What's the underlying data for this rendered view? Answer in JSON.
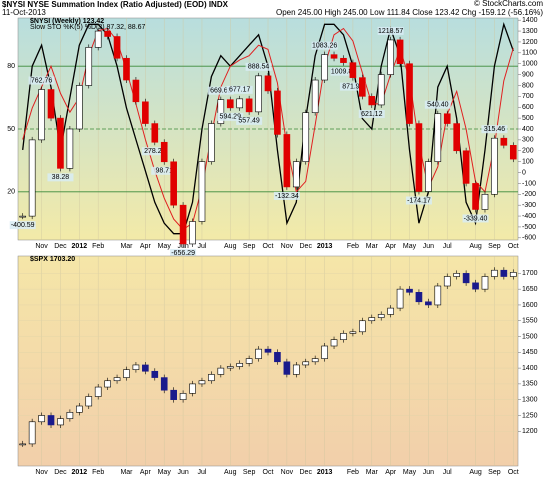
{
  "header": {
    "title": "$NYSI NYSE Summation Index (Ratio Adjusted) (EOD) INDX",
    "date": "11-Oct-2013",
    "quote": "Open 245.00  High 245.00  Low 111.84  Close 123.42  Chg -159.12 (-56.16%)",
    "copyright": "© StockCharts.com"
  },
  "chart_data": [
    {
      "type": "candlestick",
      "legend": "$NYSI (Weekly) 123.42",
      "categories": [
        null,
        null,
        "Nov",
        null,
        "Dec",
        null,
        "2012",
        null,
        "Feb",
        null,
        null,
        "Mar",
        null,
        "Apr",
        null,
        "May",
        null,
        "Jun",
        null,
        "Jul",
        null,
        null,
        "Aug",
        null,
        "Sep",
        null,
        "Oct",
        null,
        "Nov",
        null,
        "Dec",
        null,
        "2013",
        null,
        null,
        "Feb",
        null,
        "Mar",
        null,
        "Apr",
        null,
        "May",
        null,
        "Jun",
        null,
        "Jul",
        null,
        null,
        "Aug",
        null,
        "Sep",
        null,
        "Oct"
      ],
      "values": [
        -400.59,
        300,
        762.76,
        500,
        38.28,
        400,
        800,
        1150,
        1300,
        1250,
        1050,
        850,
        650,
        450,
        278.2,
        98.71,
        -300,
        -656.29,
        -450,
        100,
        450,
        669.62,
        594.29,
        677.17,
        557.49,
        888.54,
        750,
        350,
        -132.34,
        100,
        550,
        850,
        1083.26,
        1050,
        1009.82,
        871.99,
        700,
        621.12,
        900,
        1218.57,
        1000,
        450,
        -174.17,
        100,
        540.4,
        450,
        200,
        -100,
        -339.4,
        -200,
        315.46,
        250,
        123.42
      ],
      "value_labels": [
        "-400.59",
        null,
        "762.76",
        null,
        "38.28",
        null,
        null,
        null,
        null,
        null,
        null,
        null,
        null,
        null,
        "278.20",
        "98.71",
        null,
        "-656.29",
        null,
        null,
        null,
        "669.62",
        "594.29",
        "677.17",
        "557.49",
        "888.54",
        null,
        null,
        "-132.34",
        null,
        null,
        null,
        "1083.26",
        null,
        "1009.82",
        "871.99",
        null,
        "621.12",
        null,
        "1218.57",
        null,
        null,
        "-174.17",
        null,
        "540.40",
        null,
        null,
        null,
        "-339.40",
        null,
        "315.46",
        null,
        null
      ],
      "up_color": "#ffffff",
      "down_color": "#e00000",
      "ylim": [
        -620,
        1420
      ],
      "yticks": [
        -600,
        -500,
        -400,
        -300,
        -200,
        -100,
        0,
        100,
        200,
        300,
        400,
        500,
        600,
        700,
        800,
        900,
        1000,
        1100,
        1200,
        1300,
        1400
      ],
      "y2lim": [
        -3,
        103
      ],
      "y2ticks": [
        20,
        50,
        80
      ],
      "lines": {
        "legend": "Slow STO %K(5) %D(3) 87.32, 88.67",
        "series": [
          {
            "color": "#000000",
            "values": [
              40,
              80,
              90,
              70,
              40,
              65,
              90,
              100,
              100,
              95,
              80,
              60,
              45,
              30,
              15,
              5,
              0,
              0,
              15,
              50,
              75,
              85,
              80,
              85,
              90,
              95,
              80,
              40,
              5,
              15,
              55,
              85,
              100,
              100,
              95,
              80,
              55,
              50,
              80,
              98,
              85,
              40,
              5,
              20,
              70,
              80,
              55,
              15,
              5,
              40,
              80,
              100,
              87.32
            ]
          },
          {
            "color": "#e02020",
            "values": [
              45,
              60,
              70,
              80,
              67,
              58,
              65,
              85,
              97,
              98,
              92,
              78,
              62,
              45,
              30,
              17,
              7,
              2,
              5,
              22,
              47,
              70,
              80,
              83,
              85,
              90,
              88,
              72,
              42,
              20,
              25,
              52,
              80,
              95,
              98,
              92,
              77,
              62,
              62,
              76,
              88,
              74,
              43,
              22,
              32,
              57,
              68,
              50,
              25,
              20,
              42,
              73,
              88.67
            ]
          }
        ]
      }
    },
    {
      "type": "candlestick",
      "legend": "$SPX 1703.20",
      "categories": [
        null,
        null,
        "Nov",
        null,
        "Dec",
        null,
        "2012",
        null,
        "Feb",
        null,
        null,
        "Mar",
        null,
        "Apr",
        null,
        "May",
        null,
        "Jun",
        null,
        "Jul",
        null,
        null,
        "Aug",
        null,
        "Sep",
        null,
        "Oct",
        null,
        "Nov",
        null,
        "Dec",
        null,
        "2013",
        null,
        null,
        "Feb",
        null,
        "Mar",
        null,
        "Apr",
        null,
        "May",
        null,
        "Jun",
        null,
        "Jul",
        null,
        null,
        "Aug",
        null,
        "Sep",
        null,
        "Oct"
      ],
      "values": [
        1160,
        1230,
        1250,
        1220,
        1240,
        1260,
        1280,
        1310,
        1340,
        1360,
        1370,
        1395,
        1410,
        1390,
        1370,
        1330,
        1300,
        1320,
        1350,
        1360,
        1380,
        1400,
        1405,
        1415,
        1430,
        1460,
        1450,
        1420,
        1380,
        1410,
        1420,
        1430,
        1470,
        1490,
        1510,
        1515,
        1550,
        1560,
        1570,
        1590,
        1650,
        1640,
        1610,
        1600,
        1660,
        1690,
        1700,
        1670,
        1650,
        1690,
        1710,
        1690,
        1703.2
      ],
      "up_color": "#ffffff",
      "down_color": "#1a1a8c",
      "ylim": [
        1090,
        1755
      ],
      "yticks": [
        1200,
        1250,
        1300,
        1350,
        1400,
        1450,
        1500,
        1550,
        1600,
        1650,
        1700
      ]
    }
  ]
}
